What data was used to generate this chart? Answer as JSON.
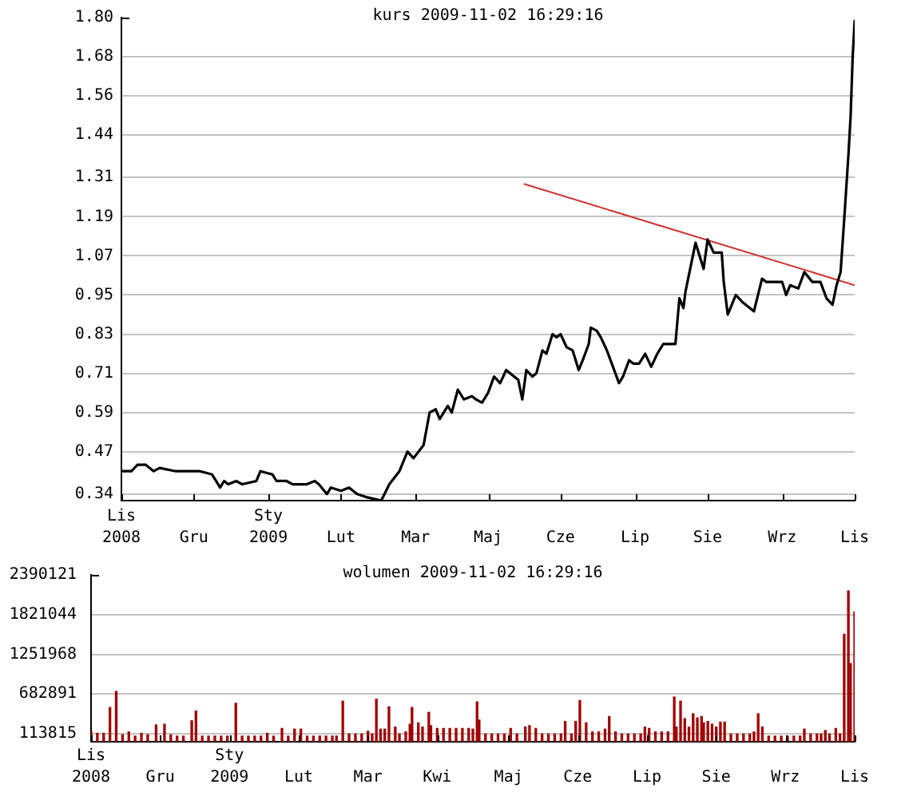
{
  "chart_data": [
    {
      "type": "line",
      "title": "kurs 2009-11-02 16:29:16",
      "grid": "y",
      "xlim": [
        "2008-11-03",
        "2009-11-02"
      ],
      "xticks": [
        {
          "value": "2008-11-03",
          "label": "Lis 2008"
        },
        {
          "value": "2008-12-09",
          "label": "Gru"
        },
        {
          "value": "2009-01-15",
          "label": "Sty 2009"
        },
        {
          "value": "2009-02-20",
          "label": "Lut"
        },
        {
          "value": "2009-03-29",
          "label": "Mar"
        },
        {
          "value": "2009-05-04",
          "label": "Maj"
        },
        {
          "value": "2009-06-09",
          "label": "Cze"
        },
        {
          "value": "2009-07-16",
          "label": "Lip"
        },
        {
          "value": "2009-08-21",
          "label": "Sie"
        },
        {
          "value": "2009-09-27",
          "label": "Wrz"
        },
        {
          "value": "2009-11-02",
          "label": "Lis"
        }
      ],
      "ylim": [
        0.32,
        1.8
      ],
      "yticks": [
        0.34,
        0.47,
        0.59,
        0.71,
        0.83,
        0.95,
        1.07,
        1.19,
        1.31,
        1.44,
        1.56,
        1.68,
        {
          "value": 1.8,
          "label": "1.80"
        }
      ],
      "series": [
        {
          "color": "#000000",
          "x": [
            "2008-11-03",
            "2008-11-08",
            "2008-11-11",
            "2008-11-15",
            "2008-11-19",
            "2008-11-22",
            "2008-11-30",
            "2008-12-08",
            "2008-12-12",
            "2008-12-18",
            "2008-12-22",
            "2008-12-24",
            "2008-12-26",
            "2008-12-30",
            "2009-01-02",
            "2009-01-09",
            "2009-01-11",
            "2009-01-17",
            "2009-01-19",
            "2009-01-24",
            "2009-01-27",
            "2009-02-03",
            "2009-02-07",
            "2009-02-09",
            "2009-02-13",
            "2009-02-15",
            "2009-02-20",
            "2009-02-24",
            "2009-02-28",
            "2009-03-05",
            "2009-03-12",
            "2009-03-16",
            "2009-03-21",
            "2009-03-25",
            "2009-03-28",
            "2009-04-02",
            "2009-04-05",
            "2009-04-08",
            "2009-04-10",
            "2009-04-14",
            "2009-04-16",
            "2009-04-19",
            "2009-04-22",
            "2009-04-26",
            "2009-04-28",
            "2009-05-01",
            "2009-05-04",
            "2009-05-07",
            "2009-05-10",
            "2009-05-13",
            "2009-05-17",
            "2009-05-19",
            "2009-05-21",
            "2009-05-23",
            "2009-05-26",
            "2009-05-28",
            "2009-05-31",
            "2009-06-02",
            "2009-06-05",
            "2009-06-07",
            "2009-06-09",
            "2009-06-12",
            "2009-06-15",
            "2009-06-18",
            "2009-06-20",
            "2009-06-23",
            "2009-06-24",
            "2009-06-27",
            "2009-06-29",
            "2009-07-02",
            "2009-07-05",
            "2009-07-08",
            "2009-07-10",
            "2009-07-13",
            "2009-07-15",
            "2009-07-18",
            "2009-07-21",
            "2009-07-24",
            "2009-07-27",
            "2009-07-30",
            "2009-08-01",
            "2009-08-05",
            "2009-08-07",
            "2009-08-09",
            "2009-08-10",
            "2009-08-12",
            "2009-08-15",
            "2009-08-19",
            "2009-08-21",
            "2009-08-24",
            "2009-08-28",
            "2009-08-29",
            "2009-08-31",
            "2009-09-04",
            "2009-09-07",
            "2009-09-13",
            "2009-09-17",
            "2009-09-19",
            "2009-09-27",
            "2009-09-29",
            "2009-10-01",
            "2009-10-05",
            "2009-10-08",
            "2009-10-12",
            "2009-10-16",
            "2009-10-19",
            "2009-10-22",
            "2009-10-24",
            "2009-10-26",
            "2009-10-28",
            "2009-10-30",
            "2009-10-31",
            "2009-11-01",
            "2009-11-02"
          ],
          "values": [
            0.41,
            0.41,
            0.43,
            0.43,
            0.41,
            0.42,
            0.41,
            0.41,
            0.41,
            0.4,
            0.36,
            0.38,
            0.37,
            0.38,
            0.37,
            0.38,
            0.41,
            0.4,
            0.38,
            0.38,
            0.37,
            0.37,
            0.38,
            0.37,
            0.34,
            0.36,
            0.35,
            0.36,
            0.34,
            0.33,
            0.32,
            0.37,
            0.41,
            0.47,
            0.45,
            0.49,
            0.59,
            0.6,
            0.57,
            0.61,
            0.59,
            0.66,
            0.63,
            0.64,
            0.63,
            0.62,
            0.65,
            0.7,
            0.68,
            0.72,
            0.7,
            0.69,
            0.63,
            0.72,
            0.7,
            0.71,
            0.78,
            0.77,
            0.83,
            0.82,
            0.83,
            0.79,
            0.78,
            0.72,
            0.75,
            0.8,
            0.85,
            0.84,
            0.82,
            0.78,
            0.73,
            0.68,
            0.7,
            0.75,
            0.74,
            0.74,
            0.77,
            0.73,
            0.77,
            0.8,
            0.8,
            0.8,
            0.94,
            0.91,
            0.96,
            1.02,
            1.11,
            1.03,
            1.12,
            1.08,
            1.08,
            0.99,
            0.89,
            0.95,
            0.93,
            0.9,
            1.0,
            0.99,
            0.99,
            0.95,
            0.98,
            0.97,
            1.02,
            0.99,
            0.99,
            0.94,
            0.92,
            0.98,
            1.02,
            1.2,
            1.39,
            1.5,
            1.68,
            1.79
          ]
        },
        {
          "type": "line",
          "color": "#cc3333",
          "x": [
            "2009-05-22",
            "2009-11-02"
          ],
          "values": [
            1.29,
            0.98
          ]
        }
      ]
    },
    {
      "type": "bar",
      "title": "wolumen 2009-11-02 16:29:16",
      "grid": "y",
      "color": "#a00000",
      "xlim": [
        "2008-11-03",
        "2009-11-02"
      ],
      "xticks": [
        {
          "value": "2008-11-03",
          "label": "Lis 2008"
        },
        {
          "value": "2008-12-06",
          "label": "Gru"
        },
        {
          "value": "2009-01-08",
          "label": "Sty 2009"
        },
        {
          "value": "2009-02-10",
          "label": "Lut"
        },
        {
          "value": "2009-03-15",
          "label": "Mar"
        },
        {
          "value": "2009-04-17",
          "label": "Kwi"
        },
        {
          "value": "2009-05-21",
          "label": "Maj"
        },
        {
          "value": "2009-06-23",
          "label": "Cze"
        },
        {
          "value": "2009-07-26",
          "label": "Lip"
        },
        {
          "value": "2009-08-28",
          "label": "Sie"
        },
        {
          "value": "2009-09-30",
          "label": "Wrz"
        },
        {
          "value": "2009-11-02",
          "label": "Lis"
        }
      ],
      "ylim": [
        0,
        2390121
      ],
      "yticks": [
        113815,
        682891,
        1251968,
        1821044,
        2390121
      ],
      "x": [
        "2008-11-03",
        "2008-11-06",
        "2008-11-09",
        "2008-11-12",
        "2008-11-15",
        "2008-11-18",
        "2008-11-21",
        "2008-11-24",
        "2008-11-27",
        "2008-11-30",
        "2008-12-04",
        "2008-12-08",
        "2008-12-11",
        "2008-12-14",
        "2008-12-17",
        "2008-12-21",
        "2008-12-23",
        "2008-12-26",
        "2008-12-29",
        "2009-01-01",
        "2009-01-04",
        "2009-01-07",
        "2009-01-11",
        "2009-01-14",
        "2009-01-17",
        "2009-01-20",
        "2009-01-23",
        "2009-01-26",
        "2009-01-29",
        "2009-02-02",
        "2009-02-05",
        "2009-02-08",
        "2009-02-11",
        "2009-02-14",
        "2009-02-17",
        "2009-02-20",
        "2009-02-23",
        "2009-02-26",
        "2009-02-28",
        "2009-03-03",
        "2009-03-06",
        "2009-03-09",
        "2009-03-12",
        "2009-03-15",
        "2009-03-17",
        "2009-03-19",
        "2009-03-21",
        "2009-03-23",
        "2009-03-25",
        "2009-03-28",
        "2009-03-30",
        "2009-04-02",
        "2009-04-04",
        "2009-04-05",
        "2009-04-08",
        "2009-04-10",
        "2009-04-13",
        "2009-04-14",
        "2009-04-17",
        "2009-04-20",
        "2009-04-23",
        "2009-04-26",
        "2009-04-29",
        "2009-05-02",
        "2009-05-04",
        "2009-05-06",
        "2009-05-07",
        "2009-05-10",
        "2009-05-13",
        "2009-05-16",
        "2009-05-19",
        "2009-05-22",
        "2009-05-25",
        "2009-05-29",
        "2009-05-31",
        "2009-06-03",
        "2009-06-06",
        "2009-06-09",
        "2009-06-12",
        "2009-06-15",
        "2009-06-17",
        "2009-06-20",
        "2009-06-22",
        "2009-06-24",
        "2009-06-27",
        "2009-06-30",
        "2009-07-03",
        "2009-07-06",
        "2009-07-08",
        "2009-07-11",
        "2009-07-14",
        "2009-07-17",
        "2009-07-20",
        "2009-07-23",
        "2009-07-25",
        "2009-07-27",
        "2009-07-30",
        "2009-08-02",
        "2009-08-05",
        "2009-08-08",
        "2009-08-09",
        "2009-08-11",
        "2009-08-13",
        "2009-08-15",
        "2009-08-17",
        "2009-08-19",
        "2009-08-21",
        "2009-08-22",
        "2009-08-24",
        "2009-08-26",
        "2009-08-28",
        "2009-08-30",
        "2009-09-01",
        "2009-09-04",
        "2009-09-07",
        "2009-09-10",
        "2009-09-13",
        "2009-09-15",
        "2009-09-17",
        "2009-09-19",
        "2009-09-22",
        "2009-09-25",
        "2009-09-28",
        "2009-10-01",
        "2009-10-04",
        "2009-10-07",
        "2009-10-09",
        "2009-10-12",
        "2009-10-15",
        "2009-10-17",
        "2009-10-19",
        "2009-10-21",
        "2009-10-24",
        "2009-10-26",
        "2009-10-28",
        "2009-10-30",
        "2009-10-31",
        "2009-11-02"
      ],
      "values": [
        140000,
        120000,
        120000,
        490000,
        720000,
        100000,
        140000,
        80000,
        120000,
        100000,
        240000,
        250000,
        100000,
        80000,
        80000,
        300000,
        440000,
        80000,
        80000,
        80000,
        80000,
        80000,
        550000,
        80000,
        80000,
        80000,
        80000,
        120000,
        80000,
        190000,
        80000,
        180000,
        180000,
        80000,
        80000,
        80000,
        80000,
        80000,
        80000,
        580000,
        110000,
        110000,
        110000,
        150000,
        110000,
        610000,
        180000,
        180000,
        500000,
        210000,
        110000,
        140000,
        250000,
        490000,
        270000,
        210000,
        420000,
        230000,
        190000,
        190000,
        190000,
        190000,
        190000,
        190000,
        180000,
        570000,
        310000,
        110000,
        110000,
        110000,
        110000,
        190000,
        110000,
        210000,
        230000,
        190000,
        110000,
        110000,
        110000,
        110000,
        290000,
        110000,
        290000,
        590000,
        270000,
        140000,
        140000,
        180000,
        360000,
        140000,
        110000,
        110000,
        110000,
        110000,
        210000,
        190000,
        140000,
        140000,
        140000,
        640000,
        210000,
        580000,
        330000,
        210000,
        400000,
        340000,
        360000,
        270000,
        290000,
        250000,
        210000,
        280000,
        280000,
        110000,
        110000,
        110000,
        110000,
        140000,
        400000,
        210000,
        80000,
        80000,
        80000,
        80000,
        80000,
        80000,
        180000,
        110000,
        110000,
        110000,
        160000,
        110000,
        190000,
        110000,
        1540000,
        2160000,
        1120000,
        1860000
      ]
    }
  ]
}
